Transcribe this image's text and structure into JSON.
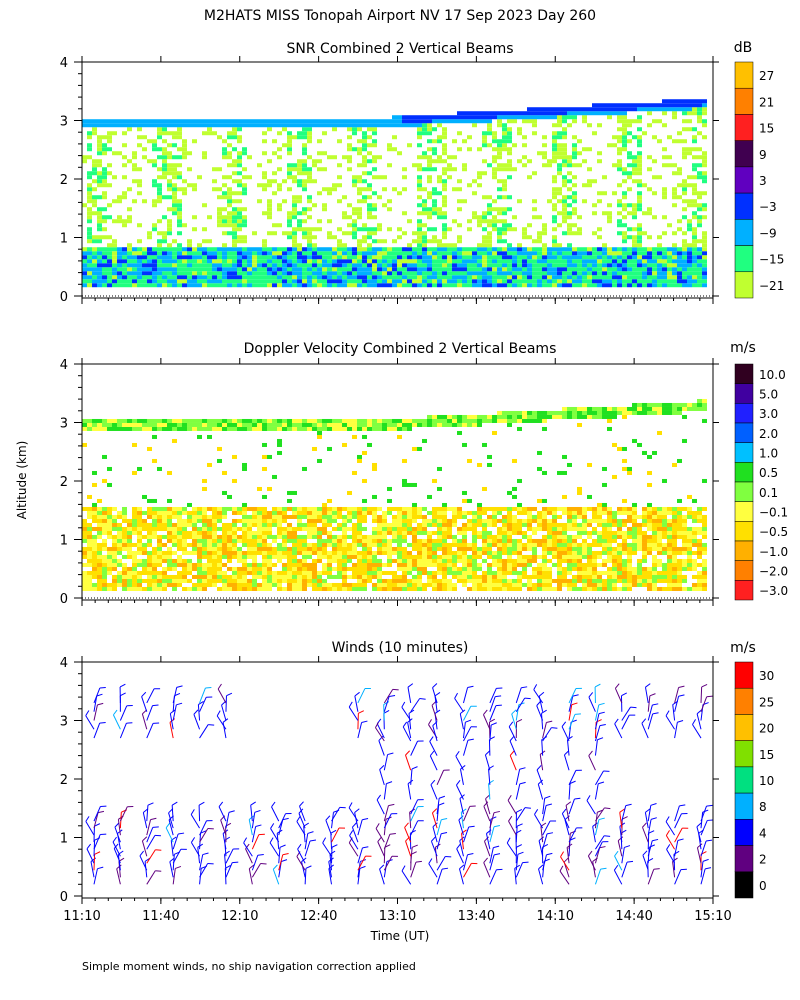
{
  "title": "M2HATS MISS Tonopah Airport NV  17 Sep 2023 Day 260",
  "footnote": "Simple moment winds, no ship navigation correction applied",
  "shared": {
    "ylabel": "Altitude (km)",
    "xlabel": "Time (UT)",
    "x_tick_labels": [
      "11:10",
      "11:40",
      "12:10",
      "12:40",
      "13:10",
      "13:40",
      "14:10",
      "14:40",
      "15:10"
    ],
    "y_tick_labels": [
      "0",
      "1",
      "2",
      "3",
      "4"
    ]
  },
  "chart_data": [
    {
      "type": "heatmap",
      "title": "SNR Combined 2 Vertical Beams",
      "colorbar_unit": "dB",
      "colorbar_labels": [
        "27",
        "21",
        "15",
        "9",
        "3",
        "−3",
        "−9",
        "−15",
        "−21"
      ],
      "colorbar_colors": [
        "#ffc000",
        "#ff8000",
        "#ff2020",
        "#400050",
        "#6000c0",
        "#0030ff",
        "#00b0ff",
        "#20ff80",
        "#c0ff30"
      ],
      "x_range": [
        "11:10",
        "15:10"
      ],
      "ylim": [
        0,
        4
      ],
      "boundary_layer_top_km": [
        3.0,
        3.0,
        2.95,
        2.95,
        2.95,
        2.95,
        3.0,
        3.1,
        3.15,
        3.15,
        3.2,
        3.2,
        3.25,
        3.3,
        3.35
      ],
      "boundary_time": [
        "11:10",
        "11:27",
        "11:44",
        "12:01",
        "12:18",
        "12:35",
        "12:52",
        "13:09",
        "13:26",
        "13:43",
        "14:00",
        "14:17",
        "14:34",
        "14:51",
        "15:10"
      ]
    },
    {
      "type": "heatmap",
      "title": "Doppler Velocity Combined 2 Vertical Beams",
      "colorbar_unit": "m/s",
      "colorbar_labels": [
        "10.0",
        "5.0",
        "3.0",
        "2.0",
        "1.0",
        "0.5",
        "0.1",
        "−0.1",
        "−0.5",
        "−1.0",
        "−2.0",
        "−3.0"
      ],
      "colorbar_colors": [
        "#300020",
        "#4000a0",
        "#2020ff",
        "#0060ff",
        "#00c0ff",
        "#20e020",
        "#80ff40",
        "#ffff40",
        "#ffe000",
        "#ffb000",
        "#ff8000",
        "#ff2020"
      ],
      "x_range": [
        "11:10",
        "15:10"
      ],
      "ylim": [
        0,
        4
      ]
    },
    {
      "type": "scatter",
      "title": "Winds (10 minutes)",
      "colorbar_unit": "m/s",
      "colorbar_labels": [
        "30",
        "25",
        "20",
        "15",
        "10",
        "8",
        "4",
        "2",
        "0"
      ],
      "colorbar_colors": [
        "#ff0000",
        "#ff8000",
        "#ffc000",
        "#80e000",
        "#00e080",
        "#00b0ff",
        "#0000ff",
        "#600080",
        "#000000"
      ],
      "x_range": [
        "11:10",
        "15:10"
      ],
      "ylim": [
        0,
        4
      ]
    }
  ]
}
